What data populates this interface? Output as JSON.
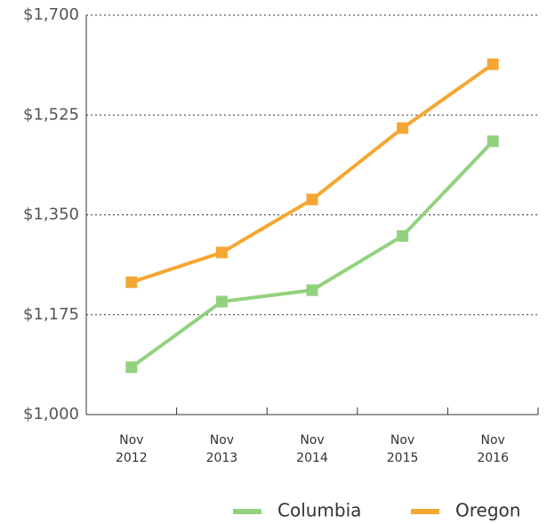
{
  "chart_data": {
    "type": "line",
    "categories": [
      "Nov 2012",
      "Nov 2013",
      "Nov 2014",
      "Nov 2015",
      "Nov 2016"
    ],
    "series": [
      {
        "name": "Columbia",
        "color": "#92d27e",
        "values": [
          1083,
          1198,
          1218,
          1313,
          1479
        ]
      },
      {
        "name": "Oregon",
        "color": "#f5a733",
        "values": [
          1232,
          1284,
          1377,
          1502,
          1614
        ]
      }
    ],
    "ylim": [
      1000,
      1700
    ],
    "yticks": [
      {
        "value": 1000,
        "label": "$1,000"
      },
      {
        "value": 1175,
        "label": "$1,175"
      },
      {
        "value": 1350,
        "label": "$1,350"
      },
      {
        "value": 1525,
        "label": "$1,525"
      },
      {
        "value": 1700,
        "label": "$1,700"
      }
    ],
    "grid": true
  }
}
